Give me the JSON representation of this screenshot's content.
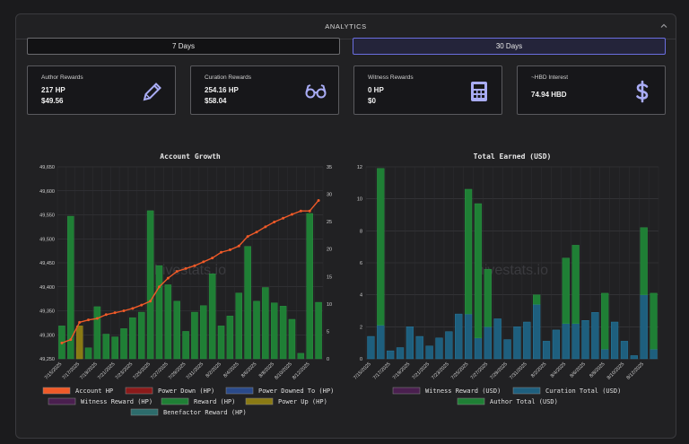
{
  "header": {
    "title": "ANALYTICS"
  },
  "range": {
    "seven": "7 Days",
    "thirty": "30 Days",
    "active": "30 Days"
  },
  "cards": [
    {
      "label": "Author Rewards",
      "v1": "217 HP",
      "v2": "$49.56",
      "icon": "pencil-icon"
    },
    {
      "label": "Curation Rewards",
      "v1": "254.16 HP",
      "v2": "$58.04",
      "icon": "glasses-icon"
    },
    {
      "label": "Witness Rewards",
      "v1": "0 HP",
      "v2": "$0",
      "icon": "calculator-icon"
    },
    {
      "label": "~HBD Interest",
      "v1": "74.94 HBD",
      "v2": "",
      "icon": "dollar-icon"
    }
  ],
  "colors": {
    "accent": "#6b6ee0",
    "icon": "#a9acf5",
    "account_hp": "#f05a28",
    "power_down": "#8b1a1a",
    "power_downed_to": "#2a4a8a",
    "witness": "#4a1f4f",
    "reward_hp": "#1f7f35",
    "power_up": "#8a7a14",
    "benefactor": "#2d6c6c",
    "curation": "#1e5f7e",
    "author": "#1f7f35"
  },
  "chart_data": [
    {
      "type": "bar",
      "title": "Account Growth",
      "watermark": "hivestats.io",
      "categories": [
        "7/15/2025",
        "7/16/2025",
        "7/17/2025",
        "7/18/2025",
        "7/19/2025",
        "7/20/2025",
        "7/21/2025",
        "7/22/2025",
        "7/23/2025",
        "7/24/2025",
        "7/25/2025",
        "7/26/2025",
        "7/27/2025",
        "7/28/2025",
        "7/29/2025",
        "7/30/2025",
        "7/31/2025",
        "8/1/2025",
        "8/2/2025",
        "8/3/2025",
        "8/4/2025",
        "8/5/2025",
        "8/6/2025",
        "8/7/2025",
        "8/8/2025",
        "8/9/2025",
        "8/10/2025",
        "8/11/2025",
        "8/12/2025",
        "8/13/2025"
      ],
      "xtick_labels": [
        "7/15/2025",
        "7/17/2025",
        "7/19/2025",
        "7/21/2025",
        "7/23/2025",
        "7/25/2025",
        "7/27/2025",
        "7/29/2025",
        "7/31/2025",
        "8/2/2025",
        "8/4/2025",
        "8/6/2025",
        "8/8/2025",
        "8/10/2025",
        "8/12/2025"
      ],
      "series": [
        {
          "name": "Reward (HP)",
          "axis": "right",
          "values": [
            6,
            26,
            2,
            2,
            9.5,
            4.5,
            4,
            5.5,
            7.5,
            8.5,
            27,
            17,
            13.5,
            10.5,
            5,
            8.5,
            9.7,
            15.5,
            6,
            7.8,
            12,
            20.5,
            10.5,
            13,
            10.2,
            9.6,
            7.2,
            1,
            26.5,
            10.3
          ]
        },
        {
          "name": "Power Up (HP)",
          "axis": "right",
          "values": [
            0,
            0,
            6,
            0,
            0,
            0,
            0,
            0,
            0,
            0,
            0,
            0,
            0,
            0,
            0,
            0,
            0,
            0,
            0,
            0,
            0,
            0,
            0,
            0,
            0,
            0,
            0,
            0,
            0,
            0
          ]
        },
        {
          "name": "Account HP",
          "axis": "left",
          "type": "line",
          "values": [
            49283,
            49290,
            49326,
            49331,
            49334,
            49342,
            49346,
            49350,
            49355,
            49362,
            49370,
            49400,
            49418,
            49432,
            49438,
            49444,
            49452,
            49460,
            49472,
            49477,
            49485,
            49505,
            49514,
            49525,
            49535,
            49543,
            49551,
            49558,
            49558,
            49580
          ]
        }
      ],
      "y_left": {
        "range": [
          49250,
          49650
        ],
        "ticks": [
          "49,650",
          "49,600",
          "49,550",
          "49,500",
          "49,450",
          "49,400",
          "49,350",
          "49,300",
          "49,250"
        ]
      },
      "y_right": {
        "range": [
          0,
          35
        ],
        "ticks": [
          "35",
          "30",
          "25",
          "20",
          "15",
          "10",
          "5",
          "0"
        ]
      },
      "grid": true,
      "legend": [
        "Account HP",
        "Power Down (HP)",
        "Power Downed To (HP)",
        "Witness Reward (HP)",
        "Reward (HP)",
        "Power Up (HP)",
        "Benefactor Reward (HP)"
      ],
      "legend_position": "bottom"
    },
    {
      "type": "bar",
      "title": "Total Earned (USD)",
      "watermark": "hivestats.io",
      "categories": [
        "7/15/2025",
        "7/16/2025",
        "7/17/2025",
        "7/18/2025",
        "7/19/2025",
        "7/20/2025",
        "7/21/2025",
        "7/22/2025",
        "7/23/2025",
        "7/24/2025",
        "7/25/2025",
        "7/26/2025",
        "7/27/2025",
        "7/28/2025",
        "7/29/2025",
        "7/30/2025",
        "7/31/2025",
        "8/1/2025",
        "8/2/2025",
        "8/3/2025",
        "8/4/2025",
        "8/5/2025",
        "8/6/2025",
        "8/7/2025",
        "8/8/2025",
        "8/9/2025",
        "8/10/2025",
        "8/11/2025",
        "8/12/2025",
        "8/13/2025"
      ],
      "xtick_labels": [
        "7/15/2025",
        "7/17/2025",
        "7/19/2025",
        "7/21/2025",
        "7/23/2025",
        "7/25/2025",
        "7/27/2025",
        "7/29/2025",
        "7/31/2025",
        "8/2/2025",
        "8/4/2025",
        "8/6/2025",
        "8/8/2025",
        "8/10/2025",
        "8/12/2025"
      ],
      "stacked": true,
      "series": [
        {
          "name": "Curation Total (USD)",
          "values": [
            1.4,
            2.1,
            0.5,
            0.7,
            2.0,
            1.4,
            0.8,
            1.3,
            1.7,
            2.8,
            2.8,
            1.3,
            2.0,
            2.5,
            1.2,
            2.0,
            2.3,
            3.4,
            1.1,
            1.8,
            2.2,
            2.2,
            2.4,
            2.9,
            0.6,
            2.3,
            1.1,
            0.2,
            4.0,
            0.6
          ]
        },
        {
          "name": "Author Total (USD)",
          "values": [
            0,
            9.8,
            0,
            0,
            0,
            0,
            0,
            0,
            0,
            0,
            7.8,
            8.4,
            3.6,
            0,
            0,
            0,
            0,
            0.6,
            0,
            0,
            4.1,
            4.9,
            0,
            0,
            3.5,
            0,
            0,
            0,
            4.2,
            3.5
          ]
        }
      ],
      "y_range": [
        0,
        12
      ],
      "y_ticks": [
        "12",
        "10",
        "8",
        "6",
        "4",
        "2",
        "0"
      ],
      "grid": true,
      "legend": [
        "Witness Reward (USD)",
        "Curation Total (USD)",
        "Author Total (USD)"
      ],
      "legend_position": "bottom"
    }
  ]
}
